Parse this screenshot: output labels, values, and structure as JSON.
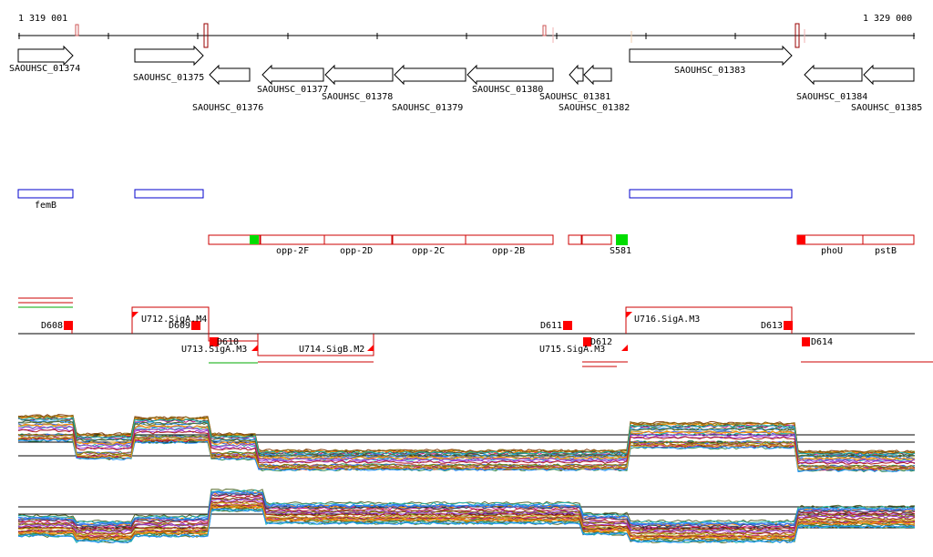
{
  "ruler": {
    "start_label": "1 319 001",
    "end_label": "1 329 000"
  },
  "genes": {
    "forward": [
      "SAOUHSC_01374",
      "SAOUHSC_01375",
      "SAOUHSC_01383"
    ],
    "reverse": [
      "SAOUHSC_01376",
      "SAOUHSC_01377",
      "SAOUHSC_01378",
      "SAOUHSC_01379",
      "SAOUHSC_01380",
      "SAOUHSC_01381",
      "SAOUHSC_01382",
      "SAOUHSC_01384",
      "SAOUHSC_01385"
    ]
  },
  "operons": {
    "labels": [
      "femB"
    ]
  },
  "annotations": {
    "labels": [
      "opp-2F",
      "opp-2D",
      "opp-2C",
      "opp-2B",
      "S581",
      "phoU",
      "pstB"
    ]
  },
  "segments": {
    "upper": [
      "D608",
      "U712.SigA.M4",
      "D609",
      "D611",
      "U716.SigA.M3",
      "D613"
    ],
    "lower": [
      "D610",
      "U713.SigA.M3",
      "U714.SigB.M2",
      "U715.SigA.M3",
      "D612",
      "D614"
    ]
  },
  "colors": {
    "gene_outline": "#000000",
    "operon": "#0000cc",
    "annotation": "#cc0000",
    "marker": "#ff0000",
    "green": "#00dd00",
    "trace_palette": [
      "#8b6914",
      "#2e8b57",
      "#4169e1",
      "#c71585",
      "#808000",
      "#ff8c00",
      "#556b2f",
      "#8b4513",
      "#20b2aa",
      "#9932cc",
      "#b22222",
      "#1e90ff",
      "#daa520",
      "#2f4f4f",
      "#cd5c5c"
    ]
  }
}
